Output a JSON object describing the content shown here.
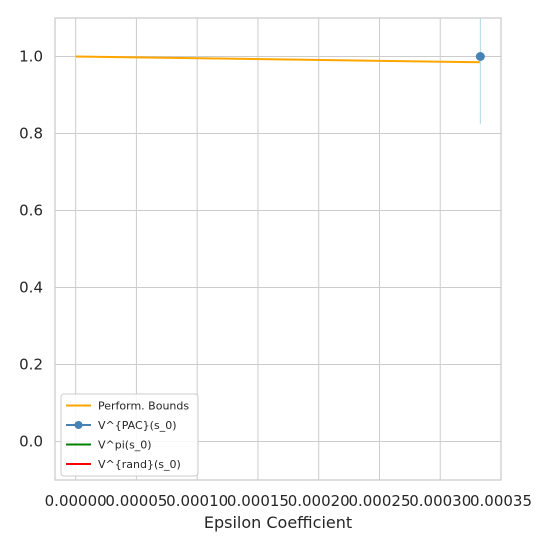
{
  "chart_data": {
    "type": "line",
    "title": "",
    "xlabel": "Epsilon Coefficient",
    "ylabel": "",
    "xlim": [
      -1.7e-05,
      0.00035
    ],
    "ylim": [
      -0.1,
      1.1
    ],
    "x_ticks": [
      0.0,
      5e-05,
      0.0001,
      0.00015,
      0.0002,
      0.00025,
      0.0003,
      0.00035
    ],
    "x_tick_labels": [
      "0.00000",
      "0.00005",
      "0.00010",
      "0.00015",
      "0.00020",
      "0.00025",
      "0.00030",
      "0.00035"
    ],
    "y_ticks": [
      0.0,
      0.2,
      0.4,
      0.6,
      0.8,
      1.0
    ],
    "y_tick_labels": [
      "0.0",
      "0.2",
      "0.4",
      "0.6",
      "0.8",
      "1.0"
    ],
    "grid": true,
    "legend_position": "lower-left",
    "series": [
      {
        "name": "Perform. Bounds",
        "color": "#ffa500",
        "marker": "none",
        "x": [
          0.0,
          0.000333
        ],
        "y": [
          1.0,
          0.985
        ]
      },
      {
        "name": "V^{PAC}(s_0)",
        "color": "#4682b4",
        "marker": "circle",
        "x": [
          0.000333
        ],
        "y": [
          1.0
        ],
        "error_band": {
          "x": 0.000333,
          "low": 0.825,
          "high": 1.1,
          "color": "#add8e6"
        }
      },
      {
        "name": "V^pi(s_0)",
        "color": "#008000",
        "marker": "none",
        "x": [],
        "y": []
      },
      {
        "name": "V^{rand}(s_0)",
        "color": "#ff0000",
        "marker": "none",
        "x": [],
        "y": []
      }
    ]
  }
}
